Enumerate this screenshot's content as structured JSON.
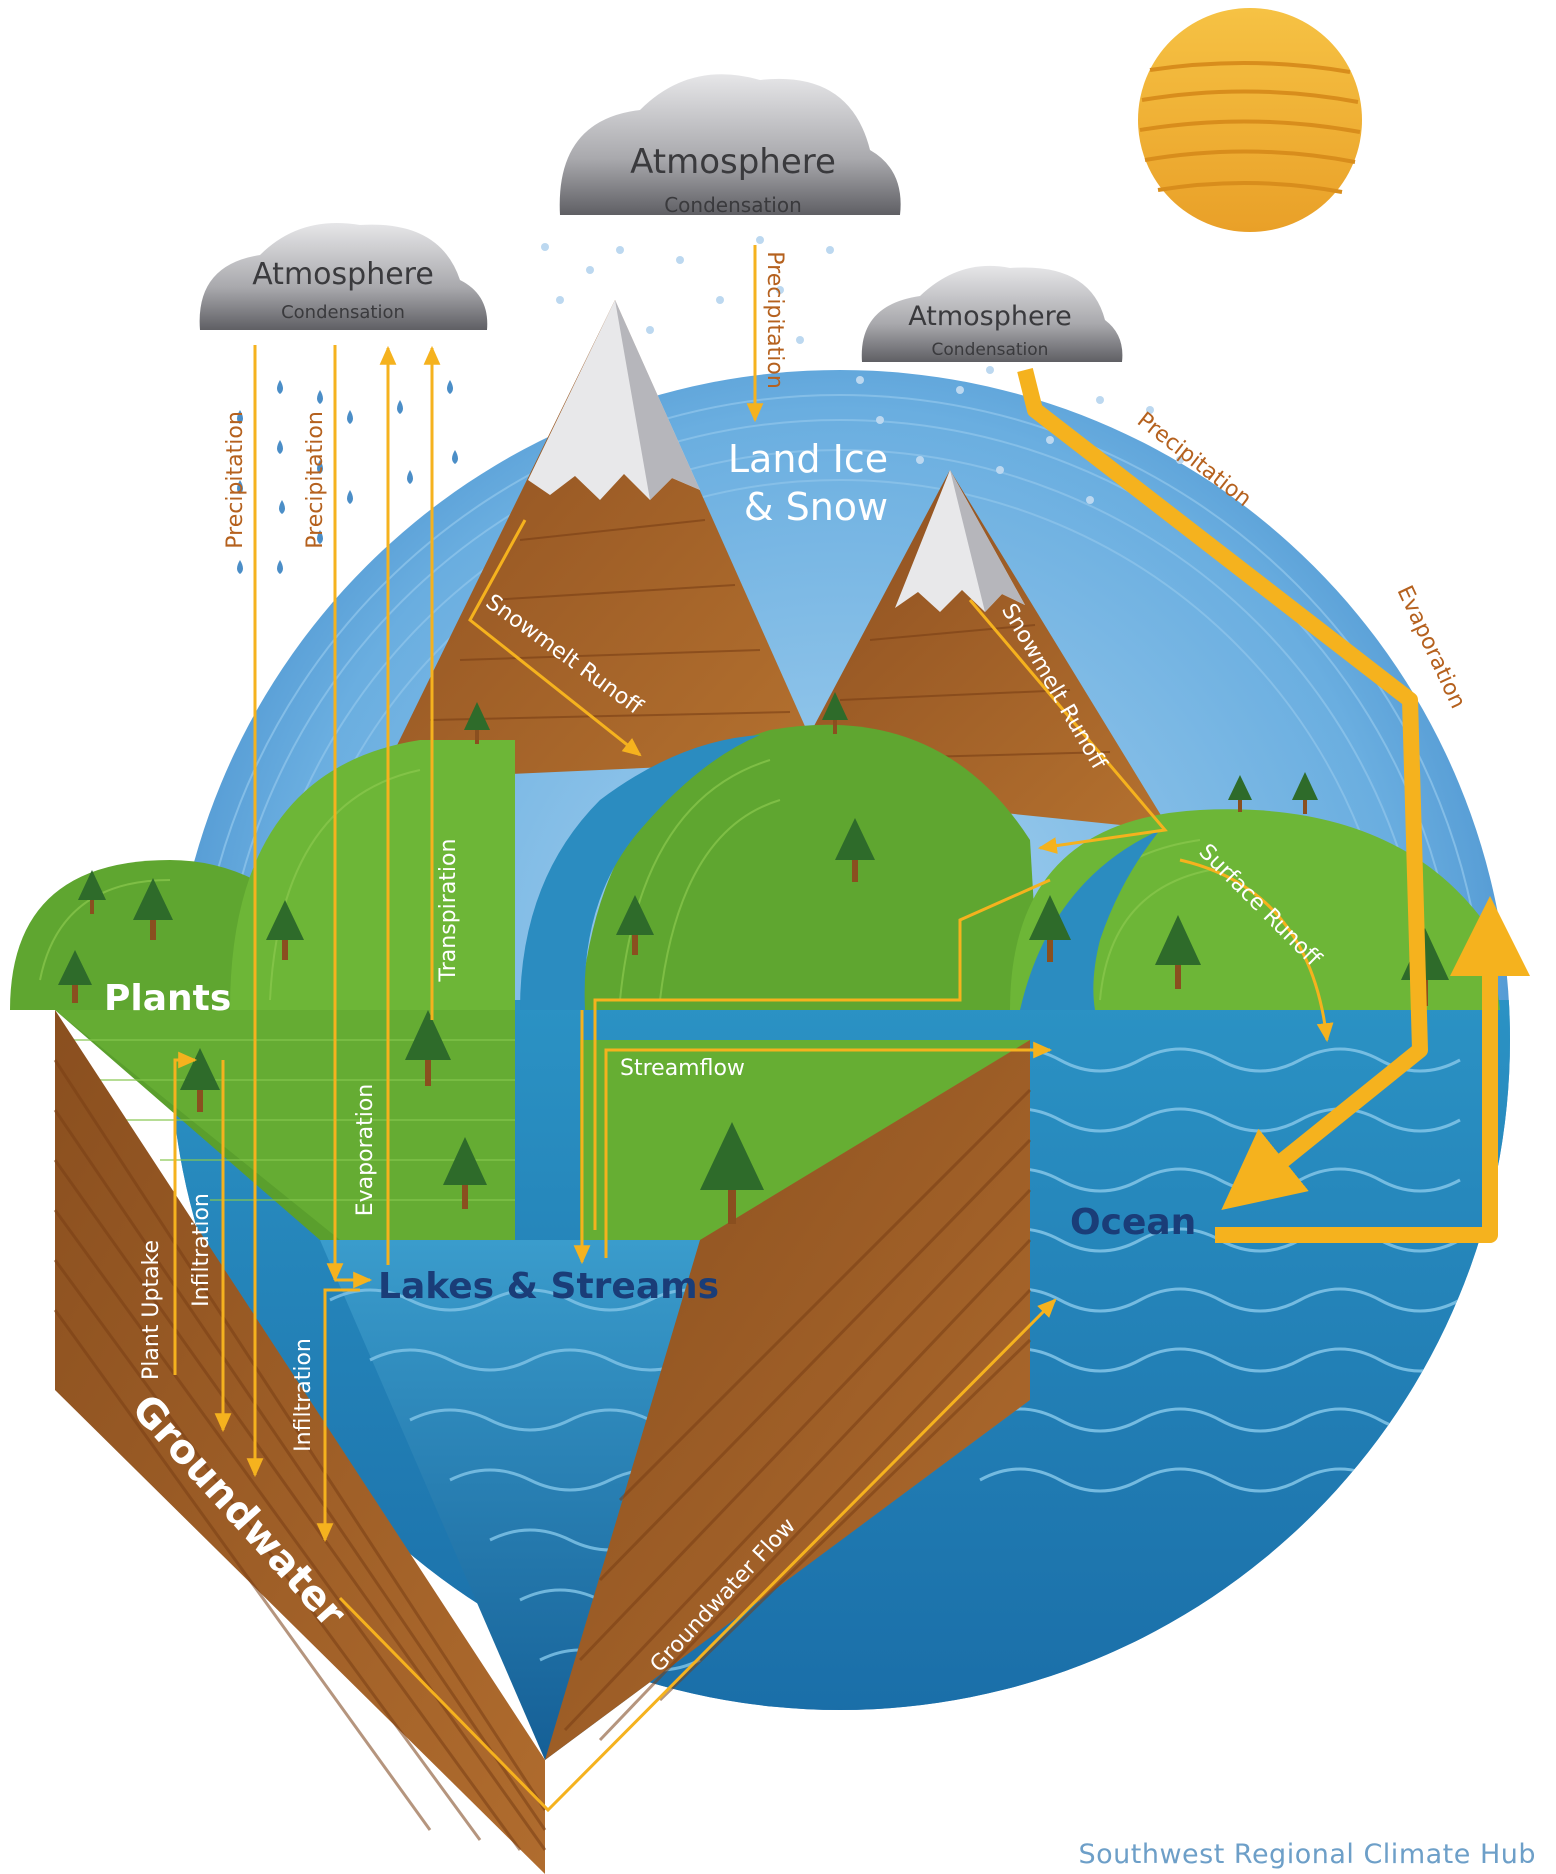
{
  "labels": {
    "clouds": [
      {
        "title": "Atmosphere",
        "subtitle": "Condensation"
      },
      {
        "title": "Atmosphere",
        "subtitle": "Condensation"
      },
      {
        "title": "Atmosphere",
        "subtitle": "Condensation"
      }
    ],
    "land_ice": [
      "Land Ice",
      "& Snow"
    ],
    "plants": "Plants",
    "lakes_streams": "Lakes & Streams",
    "ocean": "Ocean",
    "groundwater": "Groundwater",
    "processes": {
      "precipitation": "Precipitation",
      "evaporation": "Evaporation",
      "transpiration": "Transpiration",
      "snowmelt_runoff": "Snowmelt Runoff",
      "surface_runoff": "Surface Runoff",
      "streamflow": "Streamflow",
      "plant_uptake": "Plant Uptake",
      "infiltration": "Infiltration",
      "groundwater_flow": "Groundwater Flow"
    },
    "footer": "Southwest Regional Climate Hub"
  },
  "colors": {
    "arrow": "#f5b21e",
    "process_text_dark": "#b5611e",
    "title_text_dark": "#1a3d78",
    "soil": "#9a5a25",
    "grass": "#5fa630",
    "water": "#1f7cb3",
    "sky_circle": "#6aaee0"
  }
}
